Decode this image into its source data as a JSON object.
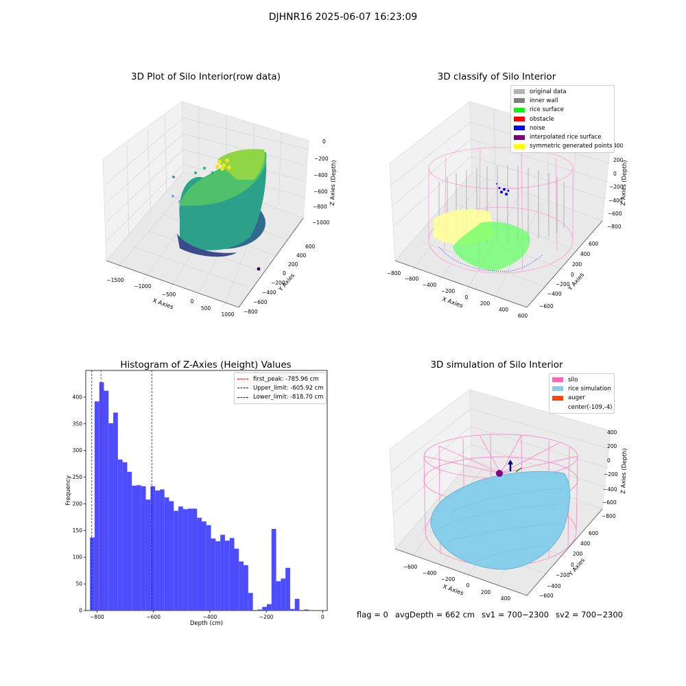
{
  "figure": {
    "suptitle": "DJHNR16 2025-06-07 16:23:09",
    "footer": {
      "flag": "flag = 0",
      "avg_depth": "avgDepth = 662 cm",
      "sv1": "sv1 = 700~2300",
      "sv2": "sv2 = 700~2300"
    }
  },
  "colors": {
    "histogram_bar": "#4d4dff",
    "first_peak_line": "#ff0000",
    "limit_lines": "#0000ff",
    "pane": "#f2f2f2",
    "silo": "#ff69b4",
    "rice_simulation": "#87ceeb",
    "auger": "#ff4500"
  },
  "chart_data": [
    {
      "type": "scatter",
      "title": "3D Plot of Silo Interior(row data)",
      "xlabel": "X Axies",
      "ylabel": "Y Axies",
      "zlabel": "Z Axies (Depth)",
      "x_ticks": [
        "−1500",
        "−1000",
        "−500",
        "0",
        "500",
        "1000"
      ],
      "y_ticks": [
        "−800",
        "−600",
        "−400",
        "−200",
        "0",
        "200",
        "400",
        "600"
      ],
      "z_ticks": [
        "0",
        "−200",
        "−400",
        "−600",
        "−800",
        "−1000"
      ],
      "colormap": "viridis"
    },
    {
      "type": "scatter",
      "title": "3D classify of Silo Interior",
      "xlabel": "X Axies",
      "ylabel": "Y Axies",
      "zlabel": "Z Axies (Depth)",
      "x_ticks": [
        "−800",
        "−600",
        "−400",
        "−200",
        "0",
        "200",
        "400",
        "600"
      ],
      "y_ticks": [
        "−600",
        "−400",
        "−200",
        "0",
        "200",
        "400",
        "600"
      ],
      "z_ticks": [
        "400",
        "200",
        "0",
        "−200",
        "−400",
        "−600",
        "−800"
      ],
      "legend": [
        {
          "label": "original data",
          "color": "#b3b3b3"
        },
        {
          "label": "inner wall",
          "color": "#808080"
        },
        {
          "label": "rice surface",
          "color": "#00ff00"
        },
        {
          "label": "obstacle",
          "color": "#ff0000"
        },
        {
          "label": "noise",
          "color": "#0000ff"
        },
        {
          "label": "interpolated rice surface",
          "color": "#800080"
        },
        {
          "label": "symmetric generated points",
          "color": "#ffff00"
        }
      ]
    },
    {
      "type": "bar",
      "title": "Histogram of Z-Axies (Height) Values",
      "xlabel": "Depth (cm)",
      "ylabel": "Frequency",
      "xlim": [
        -840,
        16
      ],
      "ylim": [
        0,
        450
      ],
      "x_ticks": [
        -800,
        -600,
        -400,
        -200,
        0
      ],
      "x_tick_labels": [
        "−800",
        "−600",
        "−400",
        "−200",
        "0"
      ],
      "y_ticks": [
        0,
        50,
        100,
        150,
        200,
        250,
        300,
        350,
        400
      ],
      "y_tick_labels": [
        "0",
        "50",
        "100",
        "150",
        "200",
        "250",
        "300",
        "350",
        "400"
      ],
      "bin_start": -825,
      "bin_width": 16.5,
      "values": [
        137,
        392,
        428,
        412,
        351,
        371,
        283,
        278,
        260,
        234,
        235,
        233,
        208,
        233,
        225,
        227,
        212,
        205,
        187,
        195,
        190,
        191,
        191,
        174,
        167,
        160,
        135,
        130,
        142,
        131,
        136,
        116,
        92,
        85,
        33,
        1,
        2,
        7,
        12,
        153,
        55,
        60,
        80,
        3,
        22,
        1,
        2
      ],
      "legend": [
        {
          "label": "first_peak: -785.96 cm",
          "color": "#ff0000"
        },
        {
          "label": "Upper_limit: -605.92 cm",
          "color": "#0000ff"
        },
        {
          "label": "Lower_limit: -818.70 cm",
          "color": "#0000ff"
        }
      ],
      "vlines": [
        {
          "x": -785.96,
          "color": "#ff0000"
        },
        {
          "x": -605.92,
          "color": "#0000ff"
        },
        {
          "x": -818.7,
          "color": "#0000ff"
        }
      ]
    },
    {
      "type": "scatter",
      "title": "3D simulation of Silo Interior",
      "xlabel": "X Axies",
      "ylabel": "Y Axies",
      "zlabel": "Z Axies (Depth)",
      "x_ticks": [
        "−600",
        "−400",
        "−200",
        "0",
        "200",
        "400"
      ],
      "y_ticks": [
        "−600",
        "−400",
        "−200",
        "0",
        "200",
        "400",
        "600"
      ],
      "z_ticks": [
        "400",
        "200",
        "0",
        "−200",
        "−400",
        "−600",
        "−800"
      ],
      "legend": [
        {
          "label": "silo",
          "color": "#ff69b4"
        },
        {
          "label": "rice simulation",
          "color": "#87ceeb"
        },
        {
          "label": "auger",
          "color": "#ff4500"
        },
        {
          "label": "center(-109,-4)",
          "color": ""
        }
      ]
    }
  ]
}
